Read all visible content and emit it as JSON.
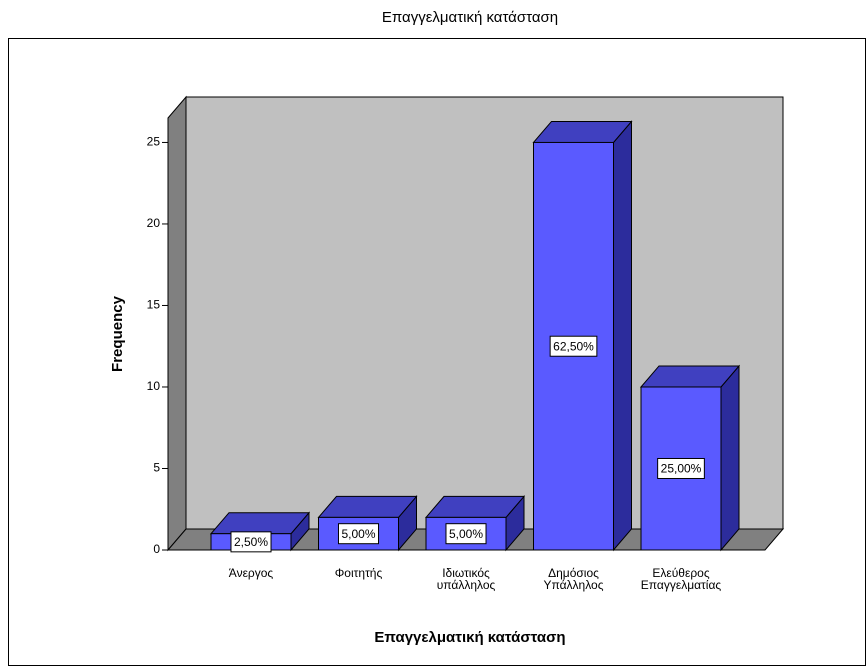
{
  "chart_data": {
    "type": "bar3d",
    "title": "Επαγγελματική κατάσταση",
    "x_label": "Επαγγελματική κατάσταση",
    "y_label": "Frequency",
    "categories": [
      "Άνεργος",
      "Φοιτητής",
      "Ιδιωτικός\nυπάλληλος",
      "Δημόσιος\nΥπάλληλος",
      "Ελεύθερος\nΕπαγγελματίας"
    ],
    "values": [
      1,
      2,
      2,
      25,
      10
    ],
    "percentages": [
      2.5,
      5,
      5,
      62.5,
      25
    ],
    "percentage_labels": [
      "2,50%",
      "5,00%",
      "5,00%",
      "62,50%",
      "25,00%"
    ],
    "color": "#5a5aff",
    "ylim": [
      0,
      26.5
    ],
    "yticks": [
      0,
      5,
      10,
      15,
      20,
      25
    ]
  }
}
